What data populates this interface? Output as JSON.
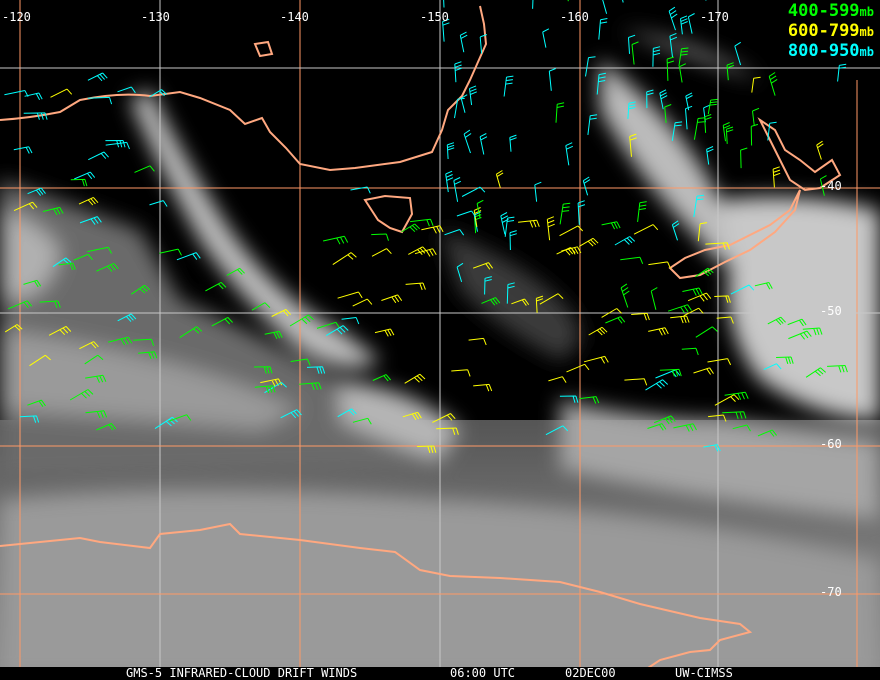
{
  "title": "GMS-5 INFRARED-CLOUD DRIFT WINDS",
  "time": "06:00 UTC",
  "date": "02DEC00",
  "source": "UW-CIMSS",
  "legend": [
    {
      "range": "400-599",
      "unit": "mb",
      "color": "#00ff00"
    },
    {
      "range": "600-799",
      "unit": "mb",
      "color": "#ffff00"
    },
    {
      "range": "800-950",
      "unit": "mb",
      "color": "#00ffff"
    }
  ],
  "longitude_labels": [
    "-120",
    "-130",
    "-140",
    "-150",
    "-160",
    "-170"
  ],
  "latitude_labels": [
    "-40",
    "-50",
    "-60",
    "-70"
  ],
  "colors": {
    "coastline": "#ffa880",
    "grid_orange": "#ff9966",
    "grid_gray": "#c8c8c8"
  }
}
